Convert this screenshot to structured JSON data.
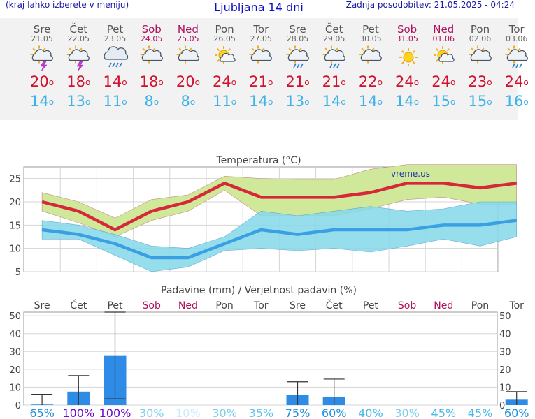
{
  "header": {
    "left_note": "(kraj lahko izberete v meniju)",
    "title": "Ljubljana 14 dni",
    "last_update": "Zadnja posodobitev: 21.05.2025 - 04:24"
  },
  "days": [
    {
      "name": "Sre",
      "date": "21.05",
      "weekend": false,
      "icon": "sun-cloud-thunder-icon",
      "tmax": "20",
      "tmin": "14",
      "precip_prob": "65%"
    },
    {
      "name": "Čet",
      "date": "22.05",
      "weekend": false,
      "icon": "sun-cloud-thunder-icon",
      "tmax": "18",
      "tmin": "13",
      "precip_prob": "100%"
    },
    {
      "name": "Pet",
      "date": "23.05",
      "weekend": false,
      "icon": "cloud-rain-icon",
      "tmax": "14",
      "tmin": "11",
      "precip_prob": "100%"
    },
    {
      "name": "Sob",
      "date": "24.05",
      "weekend": true,
      "icon": "partly-cloudy-icon",
      "tmax": "18",
      "tmin": "8",
      "precip_prob": "30%"
    },
    {
      "name": "Ned",
      "date": "25.05",
      "weekend": true,
      "icon": "partly-cloudy-icon",
      "tmax": "20",
      "tmin": "8",
      "precip_prob": "10%"
    },
    {
      "name": "Pon",
      "date": "26.05",
      "weekend": false,
      "icon": "sun-cloud-small-icon",
      "tmax": "24",
      "tmin": "11",
      "precip_prob": "30%"
    },
    {
      "name": "Tor",
      "date": "27.05",
      "weekend": false,
      "icon": "partly-cloudy-icon",
      "tmax": "21",
      "tmin": "14",
      "precip_prob": "35%"
    },
    {
      "name": "Sre",
      "date": "28.05",
      "weekend": false,
      "icon": "sun-cloud-rain-icon",
      "tmax": "21",
      "tmin": "13",
      "precip_prob": "75%"
    },
    {
      "name": "Čet",
      "date": "29.05",
      "weekend": false,
      "icon": "sun-cloud-rain-icon",
      "tmax": "21",
      "tmin": "14",
      "precip_prob": "60%"
    },
    {
      "name": "Pet",
      "date": "30.05",
      "weekend": false,
      "icon": "partly-cloudy-icon",
      "tmax": "22",
      "tmin": "14",
      "precip_prob": "40%"
    },
    {
      "name": "Sob",
      "date": "31.05",
      "weekend": true,
      "icon": "sun-icon",
      "tmax": "24",
      "tmin": "14",
      "precip_prob": "30%"
    },
    {
      "name": "Ned",
      "date": "01.06",
      "weekend": true,
      "icon": "sun-cloud-small-icon",
      "tmax": "24",
      "tmin": "15",
      "precip_prob": "45%"
    },
    {
      "name": "Pon",
      "date": "02.06",
      "weekend": false,
      "icon": "partly-cloudy-icon",
      "tmax": "23",
      "tmin": "15",
      "precip_prob": "45%"
    },
    {
      "name": "Tor",
      "date": "03.06",
      "weekend": false,
      "icon": "sun-cloud-rain-icon",
      "tmax": "24",
      "tmin": "16",
      "precip_prob": "60%"
    }
  ],
  "chart_data": [
    {
      "type": "line",
      "title": "Temperatura (°C)",
      "watermark": "vreme.us",
      "categories": [
        "21.05",
        "22.05",
        "23.05",
        "24.05",
        "25.05",
        "26.05",
        "27.05",
        "28.05",
        "29.05",
        "30.05",
        "31.05",
        "01.06",
        "02.06",
        "03.06"
      ],
      "ylim": [
        5,
        27.5
      ],
      "yticks": [
        5,
        10,
        15,
        20,
        25
      ],
      "grid": true,
      "series": [
        {
          "values": [
            20,
            18,
            14,
            18,
            20,
            24,
            21,
            21,
            21,
            22,
            24,
            24,
            23,
            24
          ],
          "color": "#d62839",
          "band_upper": [
            22,
            20,
            16.5,
            20.5,
            21.5,
            25.5,
            25,
            24.8,
            24.8,
            27,
            28,
            28,
            28,
            28
          ],
          "band_lower": [
            18,
            15.5,
            12.5,
            16,
            18,
            22.5,
            17,
            17,
            17,
            18.5,
            20.5,
            21,
            19.5,
            19.5
          ],
          "band_color": "#cfe89a"
        },
        {
          "values": [
            14,
            13,
            11,
            8,
            8,
            11,
            14,
            13,
            14,
            14,
            14,
            15,
            15,
            16
          ],
          "color": "#3ba0e3",
          "band_upper": [
            16,
            15,
            13,
            10.5,
            10,
            12.5,
            18,
            17,
            18,
            19,
            18,
            18.5,
            20,
            20
          ],
          "band_lower": [
            12,
            12,
            8.5,
            5,
            6,
            9.5,
            10,
            9.5,
            10,
            9.2,
            10.5,
            12,
            10.5,
            12.5
          ],
          "band_color": "#86d9ea"
        }
      ]
    },
    {
      "type": "bar",
      "title": "Padavine (mm) / Verjetnost padavin (%)",
      "categories": [
        "Sre",
        "Čet",
        "Pet",
        "Sob",
        "Ned",
        "Pon",
        "Tor",
        "Sre",
        "Čet",
        "Pet",
        "Sob",
        "Ned",
        "Pon",
        "Tor"
      ],
      "ylim": [
        0,
        52
      ],
      "yticks": [
        0,
        10,
        20,
        30,
        40,
        50
      ],
      "values": [
        0.3,
        7.5,
        27.5,
        0,
        0,
        0,
        0,
        5.5,
        4.5,
        0,
        0,
        0,
        0,
        3
      ],
      "error_high": [
        6,
        16.5,
        52,
        0,
        0,
        0,
        0,
        13,
        14.5,
        0,
        0,
        0,
        0,
        7.5
      ],
      "error_low": [
        0,
        0,
        3.5,
        0,
        0,
        0,
        0,
        0,
        0,
        0,
        0,
        0,
        0,
        0
      ],
      "bar_color": "#2e8be6",
      "probability_labels": [
        "65%",
        "100%",
        "100%",
        "30%",
        "10%",
        "30%",
        "35%",
        "75%",
        "60%",
        "40%",
        "30%",
        "45%",
        "45%",
        "60%"
      ],
      "probability_colors": [
        "#1e8fe0",
        "#6a0cc8",
        "#6a0cc8",
        "#7ad0ee",
        "#c7ecf7",
        "#7ad0ee",
        "#5fc4ec",
        "#1e8fe0",
        "#1e8fe0",
        "#48b8ea",
        "#7ad0ee",
        "#48b8ea",
        "#48b8ea",
        "#1e8fe0"
      ]
    }
  ]
}
